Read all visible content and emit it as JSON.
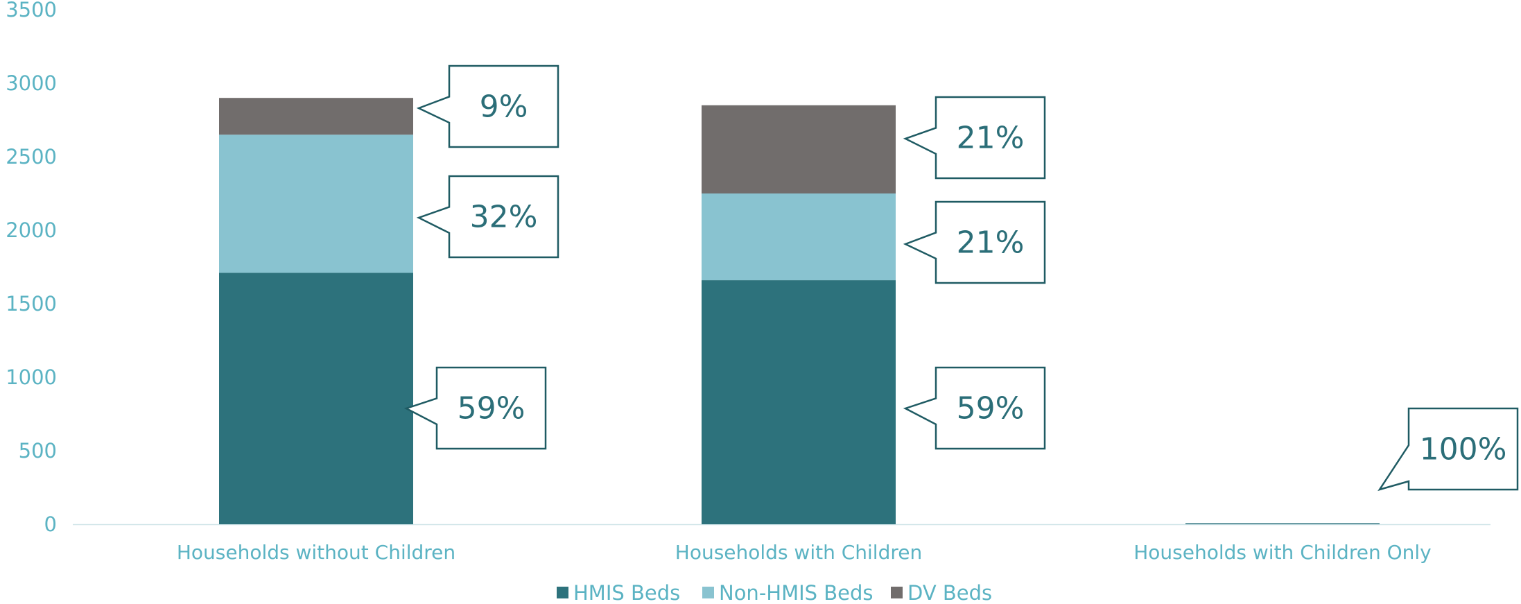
{
  "chart_data": {
    "type": "bar",
    "stacked": true,
    "categories": [
      "Households without Children",
      "Households with Children",
      "Households with Children Only"
    ],
    "series": [
      {
        "name": "HMIS Beds",
        "color": "#2d727c",
        "values": [
          1710,
          1660,
          2
        ],
        "labels": [
          "59%",
          "59%",
          "100%"
        ]
      },
      {
        "name": "Non-HMIS Beds",
        "color": "#89c3d0",
        "values": [
          940,
          590,
          0
        ],
        "labels": [
          "32%",
          "21%",
          ""
        ]
      },
      {
        "name": "DV Beds",
        "color": "#716d6c",
        "values": [
          250,
          600,
          0
        ],
        "labels": [
          "9%",
          "21%",
          ""
        ]
      }
    ],
    "ylim": [
      0,
      3500
    ],
    "yticks": [
      0,
      500,
      1000,
      1500,
      2000,
      2500,
      3000,
      3500
    ],
    "xlabel": "",
    "ylabel": "",
    "legend_position": "bottom",
    "grid": false
  }
}
